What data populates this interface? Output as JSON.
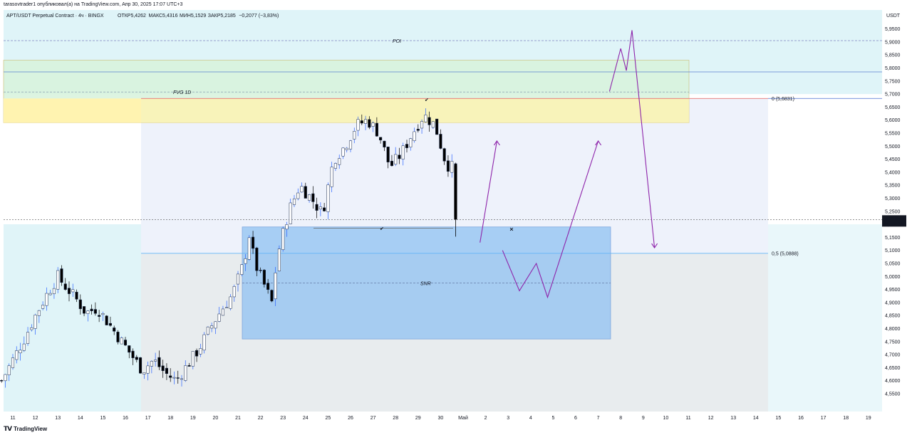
{
  "publisher_line": "tarasovtrader1 опубликовал(а) на TradingView.com, Апр 30, 2025 17:07 UTC+3",
  "footer_brand": "TradingView",
  "colors": {
    "up_body": "#ffffff",
    "down_body": "#000000",
    "candle_outline": "#1a2a4a",
    "up_wick": "#2962ff",
    "snr_box": "#90c2f2",
    "fvg_box": "#fff3b0",
    "green_zone": "#d8f3dc",
    "cyan_zone": "#dff4f8",
    "purple": "#8e24aa",
    "fib0_line": "#e57373",
    "fib05_line": "#64b5f6",
    "last_price_bg": "#131722"
  },
  "chart_data": {
    "type": "candlestick",
    "symbol": "APT/USDT Perpetual Contract · 4ч · BINGX",
    "ohlc_label": {
      "open": "ОТКР5,4262",
      "high": "МАКС5,4316",
      "low": "МИН5,1529",
      "close": "ЗАКР5,2185",
      "change": "−0,2077 (−3,83%)"
    },
    "y_axis": {
      "unit": "USDT",
      "min": 4.52,
      "max": 5.97,
      "ticks": [
        "5,9500",
        "5,9000",
        "5,8500",
        "5,8000",
        "5,7500",
        "5,7000",
        "5,6500",
        "5,6000",
        "5,5500",
        "5,5000",
        "5,4500",
        "5,4000",
        "5,3500",
        "5,3000",
        "5,2500",
        "5,2000",
        "5,1500",
        "5,1000",
        "5,0500",
        "5,0000",
        "4,9500",
        "4,9000",
        "4,8500",
        "4,8000",
        "4,7500",
        "4,7000",
        "4,6500",
        "4,6000",
        "4,5500"
      ]
    },
    "x_axis": {
      "unit": "date",
      "ticks": [
        "11",
        "12",
        "13",
        "14",
        "15",
        "16",
        "17",
        "18",
        "19",
        "20",
        "21",
        "22",
        "23",
        "24",
        "25",
        "26",
        "27",
        "28",
        "29",
        "30",
        "Май",
        "2",
        "3",
        "4",
        "5",
        "6",
        "7",
        "8",
        "9",
        "10",
        "11",
        "12",
        "13",
        "14",
        "15",
        "16",
        "17",
        "18",
        "19"
      ]
    },
    "last_price": {
      "value": "5,2185",
      "countdown": "01:52:04"
    },
    "close_path": [
      [
        "Apr 10 12:00",
        4.6
      ],
      [
        "Apr 11 00:00",
        4.68
      ],
      [
        "Apr 11 12:00",
        4.76
      ],
      [
        "Apr 12 00:00",
        4.85
      ],
      [
        "Apr 12 12:00",
        4.93
      ],
      [
        "Apr 13 00:00",
        5.0
      ],
      [
        "Apr 13 06:00",
        4.97
      ],
      [
        "Apr 13 18:00",
        4.92
      ],
      [
        "Apr 14 06:00",
        4.86
      ],
      [
        "Apr 14 18:00",
        4.88
      ],
      [
        "Apr 15 06:00",
        4.82
      ],
      [
        "Apr 15 18:00",
        4.76
      ],
      [
        "Apr 16 06:00",
        4.7
      ],
      [
        "Apr 16 18:00",
        4.64
      ],
      [
        "Apr 17 06:00",
        4.68
      ],
      [
        "Apr 17 18:00",
        4.63
      ],
      [
        "Apr 18 06:00",
        4.6
      ],
      [
        "Apr 18 18:00",
        4.66
      ],
      [
        "Apr 19 06:00",
        4.72
      ],
      [
        "Apr 19 18:00",
        4.8
      ],
      [
        "Apr 20 06:00",
        4.87
      ],
      [
        "Apr 20 18:00",
        4.93
      ],
      [
        "Apr 21 06:00",
        5.05
      ],
      [
        "Apr 21 12:00",
        5.16
      ],
      [
        "Apr 21 18:00",
        5.05
      ],
      [
        "Apr 22 06:00",
        4.95
      ],
      [
        "Apr 22 12:00",
        4.9
      ],
      [
        "Apr 22 18:00",
        5.08
      ],
      [
        "Apr 23 06:00",
        5.25
      ],
      [
        "Apr 23 18:00",
        5.35
      ],
      [
        "Apr 24 06:00",
        5.3
      ],
      [
        "Apr 24 18:00",
        5.24
      ],
      [
        "Apr 25 06:00",
        5.45
      ],
      [
        "Apr 25 18:00",
        5.5
      ],
      [
        "Apr 26 06:00",
        5.58
      ],
      [
        "Apr 26 18:00",
        5.6
      ],
      [
        "Apr 27 06:00",
        5.55
      ],
      [
        "Apr 27 18:00",
        5.42
      ],
      [
        "Apr 28 06:00",
        5.47
      ],
      [
        "Apr 28 18:00",
        5.55
      ],
      [
        "Apr 29 06:00",
        5.62
      ],
      [
        "Apr 29 18:00",
        5.58
      ],
      [
        "Apr 30 06:00",
        5.43
      ],
      [
        "Apr 30 12:00",
        5.42
      ],
      [
        "Apr 30 16:00",
        5.22
      ]
    ],
    "levels": [
      {
        "label": "POI",
        "value": 5.905
      },
      {
        "label": "FVG 1D",
        "value": 5.7
      },
      {
        "label": "0 (5,6831)",
        "value": 5.6831
      },
      {
        "label": "0,5 (5,0888)",
        "value": 5.0888
      },
      {
        "label": "SNR",
        "value": 4.975
      }
    ],
    "zones": [
      {
        "name": "FVG 1D",
        "from": 5.59,
        "to": 5.83
      },
      {
        "name": "SNR",
        "from": 4.76,
        "to": 5.19
      }
    ],
    "projected_path_1": [
      [
        "May 1 18:00",
        5.13
      ],
      [
        "May 2 12:00",
        5.52
      ]
    ],
    "projected_path_2": [
      [
        "May 2 18:00",
        5.1
      ],
      [
        "May 3 12:00",
        4.945
      ],
      [
        "May 4 06:00",
        5.05
      ],
      [
        "May 4 18:00",
        4.92
      ],
      [
        "May 7 00:00",
        5.52
      ]
    ],
    "projected_path_3": [
      [
        "May 7 12:00",
        5.71
      ],
      [
        "May 8 00:00",
        5.875
      ],
      [
        "May 8 06:00",
        5.79
      ],
      [
        "May 8 12:00",
        5.945
      ],
      [
        "May 9 12:00",
        5.11
      ]
    ]
  }
}
